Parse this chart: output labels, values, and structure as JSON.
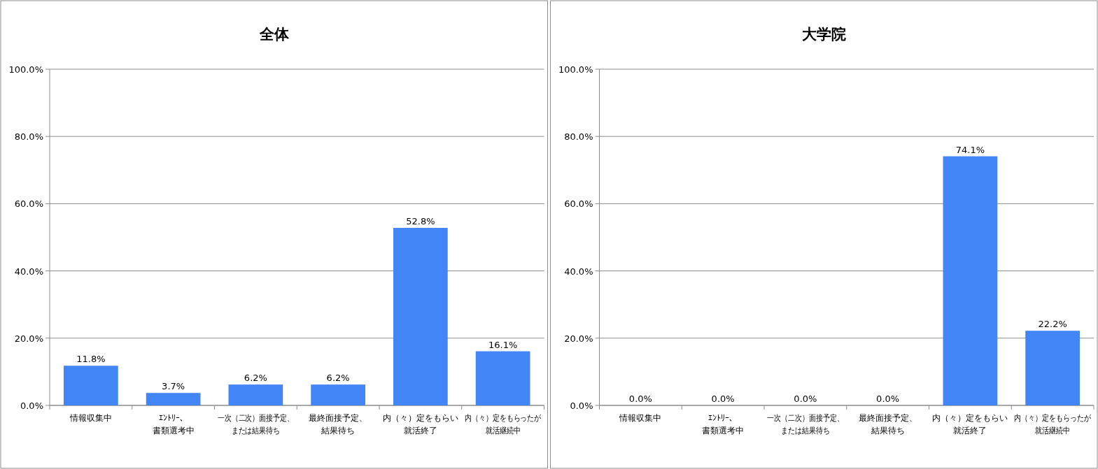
{
  "chart_data": [
    {
      "type": "bar",
      "title": "全体",
      "categories": [
        "情報収集中",
        "ｴﾝﾄﾘｰ、書類選考中",
        "一次（二次）面接予定、または結果待ち",
        "最終面接予定、結果待ち",
        "内（々）定をもらい就活終了",
        "内（々）定をもらったが就活継続中"
      ],
      "values": [
        11.8,
        3.7,
        6.2,
        6.2,
        52.8,
        16.1
      ],
      "value_labels": [
        "11.8%",
        "3.7%",
        "6.2%",
        "6.2%",
        "52.8%",
        "16.1%"
      ],
      "color": "#4285f4",
      "ylim": [
        0,
        100
      ],
      "yticks": [
        {
          "value": 0,
          "label": "0.0%"
        },
        {
          "value": 20,
          "label": "20.0%"
        },
        {
          "value": 40,
          "label": "40.0%"
        },
        {
          "value": 60,
          "label": "60.0%"
        },
        {
          "value": 80,
          "label": "80.0%"
        },
        {
          "value": 100,
          "label": "100.0%"
        }
      ],
      "grid": "y"
    },
    {
      "type": "bar",
      "title": "大学院",
      "categories": [
        "情報収集中",
        "ｴﾝﾄﾘｰ、書類選考中",
        "一次（二次）面接予定、または結果待ち",
        "最終面接予定、結果待ち",
        "内（々）定をもらい就活終了",
        "内（々）定をもらったが就活継続中"
      ],
      "values": [
        0,
        0,
        0,
        0,
        74.1,
        22.2
      ],
      "value_labels": [
        "0.0%",
        "0.0%",
        "0.0%",
        "0.0%",
        "74.1%",
        "22.2%"
      ],
      "color": "#4285f4",
      "ylim": [
        0,
        100
      ],
      "yticks": [
        {
          "value": 0,
          "label": "0.0%"
        },
        {
          "value": 20,
          "label": "20.0%"
        },
        {
          "value": 40,
          "label": "40.0%"
        },
        {
          "value": 60,
          "label": "60.0%"
        },
        {
          "value": 80,
          "label": "80.0%"
        },
        {
          "value": 100,
          "label": "100.0%"
        }
      ],
      "grid": "y"
    }
  ]
}
